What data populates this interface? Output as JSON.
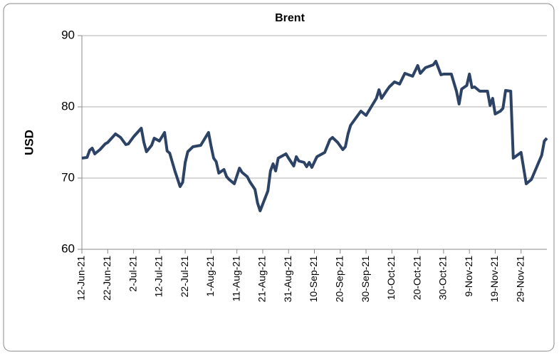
{
  "chart_data": {
    "type": "line",
    "title": "Brent",
    "y_label": "USD",
    "x": [
      "2021-06-12",
      "2021-06-14",
      "2021-06-15",
      "2021-06-16",
      "2021-06-17",
      "2021-06-19",
      "2021-06-21",
      "2021-06-22",
      "2021-06-25",
      "2021-06-27",
      "2021-06-29",
      "2021-06-30",
      "2021-07-02",
      "2021-07-05",
      "2021-07-06",
      "2021-07-07",
      "2021-07-09",
      "2021-07-10",
      "2021-07-12",
      "2021-07-14",
      "2021-07-15",
      "2021-07-16",
      "2021-07-18",
      "2021-07-20",
      "2021-07-21",
      "2021-07-22",
      "2021-07-23",
      "2021-07-25",
      "2021-07-28",
      "2021-07-30",
      "2021-07-31",
      "2021-08-01",
      "2021-08-02",
      "2021-08-03",
      "2021-08-04",
      "2021-08-06",
      "2021-08-07",
      "2021-08-08",
      "2021-08-10",
      "2021-08-12",
      "2021-08-13",
      "2021-08-15",
      "2021-08-16",
      "2021-08-18",
      "2021-08-19",
      "2021-08-20",
      "2021-08-23",
      "2021-08-24",
      "2021-08-25",
      "2021-08-26",
      "2021-08-27",
      "2021-08-30",
      "2021-08-31",
      "2021-09-02",
      "2021-09-03",
      "2021-09-04",
      "2021-09-06",
      "2021-09-07",
      "2021-09-08",
      "2021-09-09",
      "2021-09-11",
      "2021-09-13",
      "2021-09-14",
      "2021-09-16",
      "2021-09-17",
      "2021-09-19",
      "2021-09-21",
      "2021-09-22",
      "2021-09-23",
      "2021-09-24",
      "2021-09-26",
      "2021-09-28",
      "2021-09-30",
      "2021-10-02",
      "2021-10-04",
      "2021-10-05",
      "2021-10-06",
      "2021-10-08",
      "2021-10-09",
      "2021-10-11",
      "2021-10-13",
      "2021-10-15",
      "2021-10-18",
      "2021-10-20",
      "2021-10-21",
      "2021-10-23",
      "2021-10-26",
      "2021-10-27",
      "2021-10-29",
      "2021-10-30",
      "2021-11-02",
      "2021-11-04",
      "2021-11-05",
      "2021-11-06",
      "2021-11-08",
      "2021-11-09",
      "2021-11-10",
      "2021-11-11",
      "2021-11-13",
      "2021-11-16",
      "2021-11-17",
      "2021-11-18",
      "2021-11-19",
      "2021-11-21",
      "2021-11-22",
      "2021-11-23",
      "2021-11-25",
      "2021-11-26",
      "2021-11-29",
      "2021-12-01",
      "2021-12-03",
      "2021-12-07",
      "2021-12-08",
      "2021-12-09"
    ],
    "series": [
      {
        "name": "Brent",
        "color": "#2c4366",
        "values": [
          72.8,
          72.9,
          73.9,
          74.2,
          73.4,
          74.0,
          74.8,
          75.0,
          76.2,
          75.7,
          74.7,
          74.8,
          75.8,
          77.0,
          75.0,
          73.7,
          74.6,
          75.6,
          75.2,
          76.4,
          73.8,
          73.5,
          71.0,
          68.8,
          69.4,
          72.2,
          73.7,
          74.4,
          74.6,
          75.8,
          76.4,
          74.5,
          72.8,
          72.3,
          70.7,
          71.2,
          70.2,
          69.8,
          69.2,
          71.4,
          70.8,
          70.2,
          69.5,
          68.4,
          66.5,
          65.4,
          68.2,
          71.0,
          72.0,
          71.0,
          72.8,
          73.4,
          72.8,
          71.7,
          73.0,
          72.4,
          72.2,
          71.6,
          72.2,
          71.5,
          73.0,
          73.4,
          73.6,
          75.4,
          75.7,
          75.0,
          74.0,
          74.4,
          76.2,
          77.4,
          78.4,
          79.4,
          78.8,
          80.0,
          81.2,
          82.4,
          81.2,
          82.3,
          82.8,
          83.5,
          83.2,
          84.7,
          84.3,
          85.8,
          84.7,
          85.5,
          85.9,
          86.4,
          84.5,
          84.6,
          84.6,
          82.2,
          80.4,
          82.5,
          83.0,
          84.6,
          82.7,
          82.8,
          82.2,
          82.2,
          80.2,
          81.2,
          79.0,
          79.4,
          79.8,
          82.3,
          82.2,
          72.8,
          73.6,
          69.2,
          69.8,
          73.2,
          75.2,
          75.6
        ]
      }
    ],
    "xlim": [
      "2021-06-12",
      "2021-12-09"
    ],
    "xticks": [
      {
        "value": "2021-06-12",
        "label": "12-Jun-21"
      },
      {
        "value": "2021-06-22",
        "label": "22-Jun-21"
      },
      {
        "value": "2021-07-02",
        "label": "2-Jul-21"
      },
      {
        "value": "2021-07-12",
        "label": "12-Jul-21"
      },
      {
        "value": "2021-07-22",
        "label": "22-Jul-21"
      },
      {
        "value": "2021-08-01",
        "label": "1-Aug-21"
      },
      {
        "value": "2021-08-11",
        "label": "11-Aug-21"
      },
      {
        "value": "2021-08-21",
        "label": "21-Aug-21"
      },
      {
        "value": "2021-08-31",
        "label": "31-Aug-21"
      },
      {
        "value": "2021-09-10",
        "label": "10-Sep-21"
      },
      {
        "value": "2021-09-20",
        "label": "20-Sep-21"
      },
      {
        "value": "2021-09-30",
        "label": "30-Sep-21"
      },
      {
        "value": "2021-10-10",
        "label": "10-Oct-21"
      },
      {
        "value": "2021-10-20",
        "label": "20-Oct-21"
      },
      {
        "value": "2021-10-30",
        "label": "30-Oct-21"
      },
      {
        "value": "2021-11-09",
        "label": "9-Nov-21"
      },
      {
        "value": "2021-11-19",
        "label": "19-Nov-21"
      },
      {
        "value": "2021-11-29",
        "label": "29-Nov-21"
      }
    ],
    "ylim": [
      60,
      90
    ],
    "yticks": [
      60,
      70,
      80,
      90
    ],
    "grid": true
  }
}
